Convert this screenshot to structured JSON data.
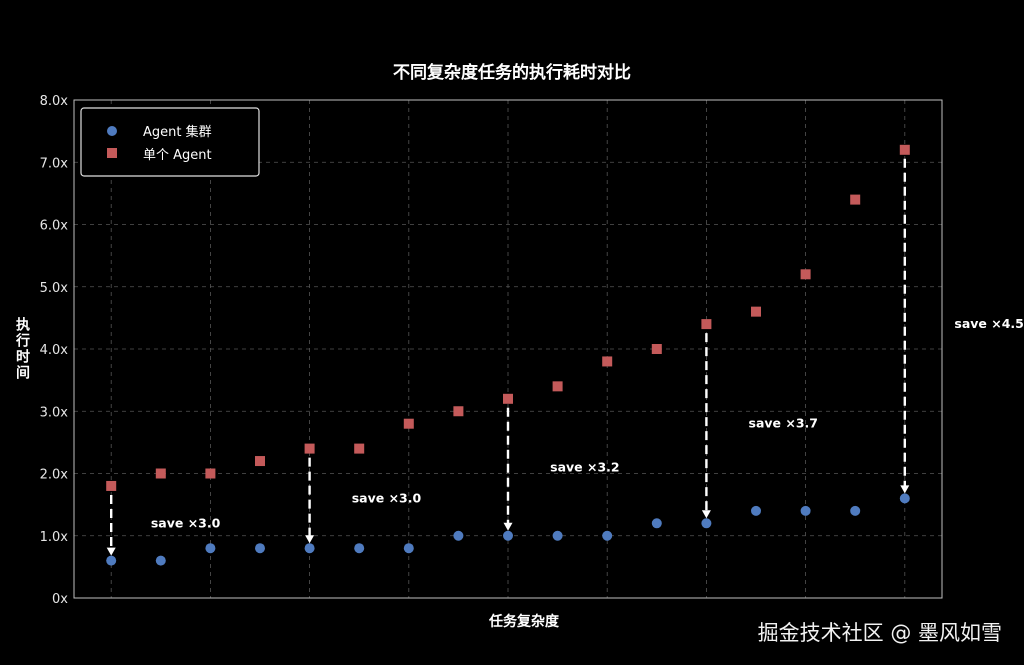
{
  "chart_data": {
    "type": "scatter",
    "title": "不同复杂度任务的执行耗时对比",
    "xlabel": "任务复杂度",
    "ylabel": "执行时间",
    "ylim": [
      0,
      8
    ],
    "yticks": [
      {
        "value": 0,
        "label": "0x"
      },
      {
        "value": 1,
        "label": "1.0x"
      },
      {
        "value": 2,
        "label": "2.0x"
      },
      {
        "value": 3,
        "label": "3.0x"
      },
      {
        "value": 4,
        "label": "4.0x"
      },
      {
        "value": 5,
        "label": "5.0x"
      },
      {
        "value": 6,
        "label": "6.0x"
      },
      {
        "value": 7,
        "label": "7.0x"
      },
      {
        "value": 8,
        "label": "8.0x"
      }
    ],
    "x": [
      1,
      2,
      3,
      4,
      5,
      6,
      7,
      8,
      9,
      10,
      11,
      12,
      13,
      14,
      15,
      16,
      17
    ],
    "xlim": [
      0.25,
      17.75
    ],
    "x_gridlines": [
      1,
      3,
      5,
      7,
      9,
      11,
      13,
      15,
      17
    ],
    "grid": true,
    "legend_position": "top-left",
    "series": [
      {
        "name": "Agent 集群",
        "marker": "circle",
        "color": "#4f7bbf",
        "values": [
          0.6,
          0.6,
          0.8,
          0.8,
          0.8,
          0.8,
          0.8,
          1.0,
          1.0,
          1.0,
          1.0,
          1.2,
          1.2,
          1.4,
          1.4,
          1.4,
          1.6
        ]
      },
      {
        "name": "单个 Agent",
        "marker": "square",
        "color": "#c45a5a",
        "values": [
          1.8,
          2.0,
          2.0,
          2.2,
          2.4,
          2.4,
          2.8,
          3.0,
          3.2,
          3.4,
          3.8,
          4.0,
          4.4,
          4.6,
          5.2,
          6.4,
          7.2
        ]
      }
    ],
    "annotations": [
      {
        "text": "save ×3.0",
        "x": 1,
        "from": 1.8,
        "to": 0.6,
        "label_x": 2.5,
        "label_y": 1.2
      },
      {
        "text": "save ×3.0",
        "x": 5,
        "from": 2.4,
        "to": 0.8,
        "label_x": 6.55,
        "label_y": 1.6
      },
      {
        "text": "save ×3.2",
        "x": 9,
        "from": 3.2,
        "to": 1.0,
        "label_x": 10.55,
        "label_y": 2.1
      },
      {
        "text": "save ×3.7",
        "x": 13,
        "from": 4.4,
        "to": 1.2,
        "label_x": 14.55,
        "label_y": 2.8
      },
      {
        "text": "save ×4.5",
        "x": 17,
        "from": 7.2,
        "to": 1.6,
        "label_x": 18.7,
        "label_y": 4.4
      }
    ]
  },
  "watermark": "掘金技术社区 @ 墨风如雪"
}
